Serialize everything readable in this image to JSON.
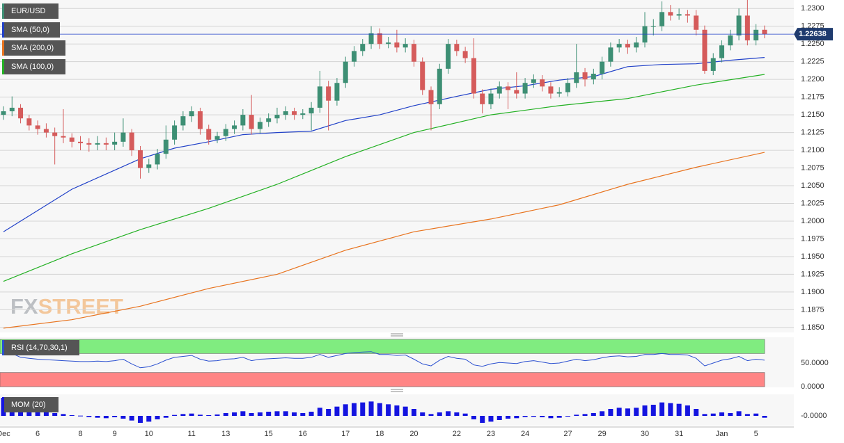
{
  "chart_data": [
    {
      "type": "candlestick",
      "symbol": "EUR/USD",
      "symbol_color": "#3d8f74",
      "up_color": "#3d8f74",
      "down_color": "#d55b5b",
      "grid": true,
      "ylim": [
        1.1843,
        1.2312
      ],
      "yticks": [
        {
          "value": 1.23,
          "label": "1.2300"
        },
        {
          "value": 1.2275,
          "label": "1.2275"
        },
        {
          "value": 1.225,
          "label": "1.2250"
        },
        {
          "value": 1.2225,
          "label": "1.2225"
        },
        {
          "value": 1.22,
          "label": "1.2200"
        },
        {
          "value": 1.2175,
          "label": "1.2175"
        },
        {
          "value": 1.215,
          "label": "1.2150"
        },
        {
          "value": 1.2125,
          "label": "1.2125"
        },
        {
          "value": 1.21,
          "label": "1.2100"
        },
        {
          "value": 1.2075,
          "label": "1.2075"
        },
        {
          "value": 1.205,
          "label": "1.2050"
        },
        {
          "value": 1.2025,
          "label": "1.2025"
        },
        {
          "value": 1.2,
          "label": "1.2000"
        },
        {
          "value": 1.1975,
          "label": "1.1975"
        },
        {
          "value": 1.195,
          "label": "1.1950"
        },
        {
          "value": 1.1925,
          "label": "1.1925"
        },
        {
          "value": 1.19,
          "label": "1.1900"
        },
        {
          "value": 1.1875,
          "label": "1.1875"
        },
        {
          "value": 1.185,
          "label": "1.1850"
        }
      ],
      "last_price": {
        "value": 1.22638,
        "label": "1.22638"
      },
      "watermark": [
        "FX",
        "STREET"
      ],
      "categories": [
        "Dec",
        null,
        null,
        null,
        "6",
        null,
        null,
        null,
        null,
        "8",
        null,
        null,
        null,
        "9",
        null,
        null,
        null,
        "10",
        null,
        null,
        null,
        null,
        "11",
        null,
        null,
        null,
        "13",
        null,
        null,
        null,
        null,
        "15",
        null,
        null,
        null,
        "16",
        null,
        null,
        null,
        null,
        "17",
        null,
        null,
        null,
        "18",
        null,
        null,
        null,
        "20",
        null,
        null,
        null,
        null,
        "22",
        null,
        null,
        null,
        "23",
        null,
        null,
        null,
        "24",
        null,
        null,
        null,
        null,
        "27",
        null,
        null,
        null,
        "29",
        null,
        null,
        null,
        null,
        "30",
        null,
        null,
        null,
        "31",
        null,
        null,
        null,
        null,
        "Jan",
        null,
        null,
        null,
        "5",
        null
      ],
      "ohlc": [
        [
          1.215,
          1.2162,
          1.2143,
          1.2155
        ],
        [
          1.2155,
          1.2176,
          1.2148,
          1.216
        ],
        [
          1.216,
          1.2165,
          1.2138,
          1.2145
        ],
        [
          1.2145,
          1.215,
          1.2128,
          1.2135
        ],
        [
          1.2135,
          1.2142,
          1.2122,
          1.213
        ],
        [
          1.213,
          1.2138,
          1.2118,
          1.2125
        ],
        [
          1.2125,
          1.2132,
          1.208,
          1.212
        ],
        [
          1.212,
          1.2158,
          1.211,
          1.2118
        ],
        [
          1.2118,
          1.2124,
          1.2104,
          1.2112
        ],
        [
          1.2112,
          1.212,
          1.21,
          1.211
        ],
        [
          1.211,
          1.2117,
          1.2098,
          1.2108
        ],
        [
          1.2108,
          1.212,
          1.21,
          1.211
        ],
        [
          1.211,
          1.2118,
          1.21,
          1.2108
        ],
        [
          1.2108,
          1.2125,
          1.21,
          1.2112
        ],
        [
          1.2112,
          1.2145,
          1.2105,
          1.2125
        ],
        [
          1.2125,
          1.213,
          1.2092,
          1.21
        ],
        [
          1.21,
          1.2106,
          1.206,
          1.2075
        ],
        [
          1.2075,
          1.2088,
          1.2068,
          1.208
        ],
        [
          1.208,
          1.2102,
          1.2073,
          1.2095
        ],
        [
          1.2095,
          1.2135,
          1.2088,
          1.2115
        ],
        [
          1.2115,
          1.2142,
          1.2108,
          1.2135
        ],
        [
          1.2135,
          1.2155,
          1.2128,
          1.2148
        ],
        [
          1.2148,
          1.2162,
          1.214,
          1.2155
        ],
        [
          1.2155,
          1.216,
          1.2122,
          1.213
        ],
        [
          1.213,
          1.2136,
          1.2108,
          1.2115
        ],
        [
          1.2115,
          1.2126,
          1.211,
          1.212
        ],
        [
          1.212,
          1.2137,
          1.2113,
          1.213
        ],
        [
          1.213,
          1.2142,
          1.2123,
          1.2135
        ],
        [
          1.2135,
          1.2158,
          1.2128,
          1.215
        ],
        [
          1.215,
          1.2178,
          1.2122,
          1.213
        ],
        [
          1.213,
          1.2146,
          1.2124,
          1.214
        ],
        [
          1.214,
          1.2152,
          1.2133,
          1.2145
        ],
        [
          1.2145,
          1.216,
          1.2138,
          1.215
        ],
        [
          1.215,
          1.2162,
          1.2143,
          1.2155
        ],
        [
          1.2155,
          1.216,
          1.2143,
          1.215
        ],
        [
          1.215,
          1.2158,
          1.2144,
          1.2152
        ],
        [
          1.2152,
          1.2168,
          1.2128,
          1.216
        ],
        [
          1.216,
          1.2212,
          1.2153,
          1.219
        ],
        [
          1.219,
          1.2198,
          1.2128,
          1.217
        ],
        [
          1.217,
          1.2202,
          1.2163,
          1.2195
        ],
        [
          1.2195,
          1.2232,
          1.2188,
          1.2225
        ],
        [
          1.2225,
          1.2247,
          1.2218,
          1.224
        ],
        [
          1.224,
          1.2257,
          1.2233,
          1.225
        ],
        [
          1.225,
          1.2275,
          1.2243,
          1.2265
        ],
        [
          1.2265,
          1.2272,
          1.2243,
          1.225
        ],
        [
          1.225,
          1.226,
          1.2244,
          1.2252
        ],
        [
          1.2252,
          1.227,
          1.2238,
          1.2245
        ],
        [
          1.2245,
          1.2258,
          1.2238,
          1.225
        ],
        [
          1.225,
          1.2256,
          1.2218,
          1.2225
        ],
        [
          1.2225,
          1.2231,
          1.2178,
          1.2185
        ],
        [
          1.2185,
          1.219,
          1.2128,
          1.2165
        ],
        [
          1.2165,
          1.2222,
          1.2158,
          1.2215
        ],
        [
          1.2215,
          1.2257,
          1.2208,
          1.225
        ],
        [
          1.225,
          1.2256,
          1.2233,
          1.224
        ],
        [
          1.224,
          1.2246,
          1.2223,
          1.223
        ],
        [
          1.223,
          1.2258,
          1.2173,
          1.218
        ],
        [
          1.218,
          1.2186,
          1.2152,
          1.2165
        ],
        [
          1.2165,
          1.2187,
          1.2158,
          1.218
        ],
        [
          1.218,
          1.2197,
          1.2173,
          1.219
        ],
        [
          1.219,
          1.2196,
          1.2158,
          1.2185
        ],
        [
          1.2185,
          1.221,
          1.2173,
          1.218
        ],
        [
          1.218,
          1.2202,
          1.2173,
          1.2195
        ],
        [
          1.2195,
          1.2207,
          1.2188,
          1.22
        ],
        [
          1.22,
          1.2206,
          1.2183,
          1.219
        ],
        [
          1.219,
          1.2196,
          1.2173,
          1.218
        ],
        [
          1.218,
          1.2189,
          1.2175,
          1.2182
        ],
        [
          1.2182,
          1.2202,
          1.2176,
          1.2195
        ],
        [
          1.2195,
          1.225,
          1.2188,
          1.221
        ],
        [
          1.221,
          1.2216,
          1.219,
          1.22
        ],
        [
          1.22,
          1.2215,
          1.2193,
          1.2208
        ],
        [
          1.2208,
          1.2232,
          1.22,
          1.2225
        ],
        [
          1.2225,
          1.2252,
          1.2218,
          1.2245
        ],
        [
          1.2245,
          1.2257,
          1.2238,
          1.225
        ],
        [
          1.225,
          1.2256,
          1.2236,
          1.2245
        ],
        [
          1.2245,
          1.226,
          1.2238,
          1.2252
        ],
        [
          1.2252,
          1.2295,
          1.2245,
          1.2275
        ],
        [
          1.2275,
          1.2285,
          1.2262,
          1.2275
        ],
        [
          1.2275,
          1.231,
          1.2268,
          1.2295
        ],
        [
          1.2295,
          1.2305,
          1.2283,
          1.229
        ],
        [
          1.229,
          1.23,
          1.2284,
          1.2292
        ],
        [
          1.2292,
          1.2298,
          1.228,
          1.229
        ],
        [
          1.229,
          1.2298,
          1.2262,
          1.227
        ],
        [
          1.227,
          1.2276,
          1.2208,
          1.2212
        ],
        [
          1.2212,
          1.2237,
          1.2206,
          1.223
        ],
        [
          1.223,
          1.2255,
          1.2224,
          1.2248
        ],
        [
          1.2248,
          1.227,
          1.2241,
          1.2262
        ],
        [
          1.2262,
          1.23,
          1.2255,
          1.229
        ],
        [
          1.229,
          1.2312,
          1.2248,
          1.2255
        ],
        [
          1.2255,
          1.2278,
          1.2248,
          1.227
        ],
        [
          1.227,
          1.2276,
          1.2258,
          1.2264
        ]
      ],
      "overlays": [
        {
          "name": "SMA (50,0)",
          "color": "#2040c8",
          "x": [
            0,
            8,
            16,
            20,
            24,
            28,
            32,
            36,
            40,
            44,
            48,
            53,
            57,
            61,
            65,
            69,
            73,
            77,
            81,
            85,
            89
          ],
          "values": [
            1.1985,
            1.2045,
            1.2088,
            1.2103,
            1.2112,
            1.2122,
            1.2125,
            1.2127,
            1.2142,
            1.215,
            1.2163,
            1.2176,
            1.2186,
            1.2191,
            1.2199,
            1.2204,
            1.2218,
            1.2221,
            1.2222,
            1.2227,
            1.2231
          ]
        },
        {
          "name": "SMA (200,0)",
          "color": "#e8731e",
          "x": [
            0,
            8,
            16,
            24,
            32,
            40,
            48,
            57,
            65,
            73,
            81,
            89
          ],
          "values": [
            1.1849,
            1.1861,
            1.188,
            1.1905,
            1.1925,
            1.1959,
            1.1985,
            1.2003,
            1.2023,
            1.2052,
            1.2076,
            1.2097
          ]
        },
        {
          "name": "SMA (100,0)",
          "color": "#22b022",
          "x": [
            0,
            8,
            16,
            24,
            32,
            40,
            48,
            57,
            65,
            73,
            81,
            89
          ],
          "values": [
            1.1915,
            1.1954,
            1.1988,
            1.2018,
            1.2052,
            1.2091,
            1.2125,
            1.215,
            1.2163,
            1.2173,
            1.2192,
            1.2207
          ]
        }
      ]
    },
    {
      "type": "line",
      "name": "RSI (14,70,30,1)",
      "color": "#2a4fd0",
      "ylim": [
        -1.5,
        104.4
      ],
      "yticks": [
        {
          "value": 50,
          "label": "50.0000"
        },
        {
          "value": 0,
          "label": "0.0000"
        }
      ],
      "bands": [
        {
          "from": 70,
          "to": 100,
          "color": "#80ec80"
        },
        {
          "from": 0,
          "to": 30,
          "color": "#ff8585"
        }
      ],
      "values": [
        72,
        70,
        62,
        60,
        58,
        57,
        56,
        55,
        54,
        53,
        53,
        54,
        53,
        55,
        58,
        48,
        40,
        42,
        48,
        56,
        62,
        64,
        66,
        58,
        54,
        55,
        58,
        59,
        62,
        55,
        58,
        59,
        60,
        61,
        60,
        60,
        62,
        68,
        62,
        66,
        70,
        72,
        73,
        74,
        68,
        68,
        66,
        67,
        58,
        48,
        44,
        56,
        64,
        60,
        58,
        46,
        43,
        48,
        51,
        50,
        49,
        53,
        55,
        52,
        49,
        50,
        54,
        58,
        55,
        57,
        61,
        64,
        65,
        63,
        64,
        68,
        68,
        70,
        68,
        68,
        67,
        60,
        44,
        50,
        56,
        59,
        64,
        55,
        58,
        56
      ]
    },
    {
      "type": "bar",
      "name": "MOM (20)",
      "color": "#1414e0",
      "ylim": [
        -0.0042,
        0.0093
      ],
      "yticks": [
        {
          "value": 0,
          "label": "-0.0000"
        }
      ],
      "values": [
        0.0078,
        0.0075,
        0.006,
        0.0045,
        0.003,
        0.002,
        0.0012,
        0.0008,
        0.0003,
        0.0001,
        -0.0005,
        -0.0008,
        -0.001,
        -0.0006,
        -0.0012,
        -0.002,
        -0.003,
        -0.0025,
        -0.0015,
        -0.0008,
        0.0004,
        0.0008,
        0.001,
        0.0005,
        0.0003,
        0.0006,
        0.0012,
        0.0015,
        0.002,
        0.0012,
        0.0015,
        0.0018,
        0.002,
        0.002,
        0.0015,
        0.0012,
        0.0018,
        0.0035,
        0.003,
        0.004,
        0.005,
        0.0055,
        0.0058,
        0.0062,
        0.0055,
        0.005,
        0.0045,
        0.004,
        0.003,
        0.0015,
        0.0008,
        0.0015,
        0.002,
        0.0015,
        0.001,
        -0.0015,
        -0.003,
        -0.0025,
        -0.0018,
        -0.0012,
        -0.001,
        -0.0005,
        -0.0004,
        -0.0006,
        -0.001,
        -0.0008,
        -0.0003,
        0.0005,
        0.0008,
        0.0012,
        0.002,
        0.003,
        0.0035,
        0.0032,
        0.0035,
        0.0045,
        0.0048,
        0.0058,
        0.0055,
        0.0052,
        0.0045,
        0.003,
        0.0008,
        0.001,
        0.0015,
        0.0012,
        0.002,
        0.0008,
        0.001,
        -0.0008
      ]
    }
  ]
}
